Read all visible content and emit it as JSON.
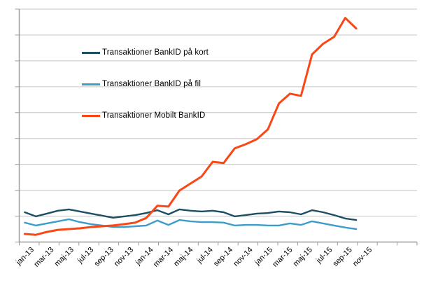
{
  "chart_data": {
    "type": "line",
    "title": "",
    "xlabel": "",
    "ylabel": "",
    "x": [
      "jan-13",
      "feb-13",
      "mar-13",
      "apr-13",
      "maj-13",
      "jun-13",
      "jul-13",
      "aug-13",
      "sep-13",
      "okt-13",
      "nov-13",
      "dec-13",
      "jan-14",
      "feb-14",
      "mar-14",
      "apr-14",
      "maj-14",
      "jun-14",
      "jul-14",
      "aug-14",
      "sep-14",
      "okt-14",
      "nov-14",
      "dec-14",
      "jan-15",
      "feb-15",
      "mar-15",
      "apr-15",
      "maj-15",
      "jun-15",
      "jul-15"
    ],
    "x_axis_tick_labels": [
      "jan-13",
      "mar-13",
      "maj-13",
      "jul-13",
      "sep-13",
      "nov-13",
      "jan-14",
      "mar-14",
      "maj-14",
      "jul-14",
      "sep-14",
      "nov-14",
      "jan-15",
      "mar-15",
      "maj-15",
      "jul-15",
      "sep-15",
      "nov-15"
    ],
    "y_axis": {
      "labels_visible": false,
      "ylim": [
        0,
        9
      ],
      "gridline_intervals": 9
    },
    "legend_position": "inside-upper-left",
    "series": [
      {
        "name": "Transaktioner BankID på kort",
        "color": "#1d4e63",
        "values": [
          1.15,
          0.99,
          1.1,
          1.21,
          1.26,
          1.18,
          1.1,
          1.02,
          0.94,
          0.99,
          1.04,
          1.12,
          1.23,
          1.07,
          1.26,
          1.21,
          1.18,
          1.21,
          1.15,
          0.99,
          1.04,
          1.1,
          1.12,
          1.18,
          1.15,
          1.07,
          1.23,
          1.15,
          1.04,
          0.91,
          0.85
        ]
      },
      {
        "name": "Transaktioner BankID på fil",
        "color": "#3d9dc9",
        "values": [
          0.75,
          0.64,
          0.72,
          0.8,
          0.88,
          0.77,
          0.69,
          0.64,
          0.58,
          0.58,
          0.61,
          0.64,
          0.83,
          0.66,
          0.85,
          0.8,
          0.77,
          0.77,
          0.75,
          0.64,
          0.66,
          0.66,
          0.64,
          0.64,
          0.72,
          0.66,
          0.8,
          0.72,
          0.64,
          0.56,
          0.5
        ]
      },
      {
        "name": "Transaktioner Mobilt BankID",
        "color": "#fb4616",
        "values": [
          0.31,
          0.28,
          0.39,
          0.47,
          0.5,
          0.53,
          0.58,
          0.61,
          0.64,
          0.69,
          0.75,
          0.93,
          1.4,
          1.37,
          1.99,
          2.26,
          2.53,
          3.1,
          3.05,
          3.62,
          3.78,
          3.97,
          4.35,
          5.35,
          5.73,
          5.65,
          7.25,
          7.66,
          7.93,
          8.66,
          8.25
        ]
      }
    ],
    "style": {
      "gridline_color": "#c6c6c6",
      "axis_color": "#9b9b9b",
      "tick_color": "#9b9b9b",
      "label_color": "#000000",
      "background": "#ffffff"
    }
  }
}
